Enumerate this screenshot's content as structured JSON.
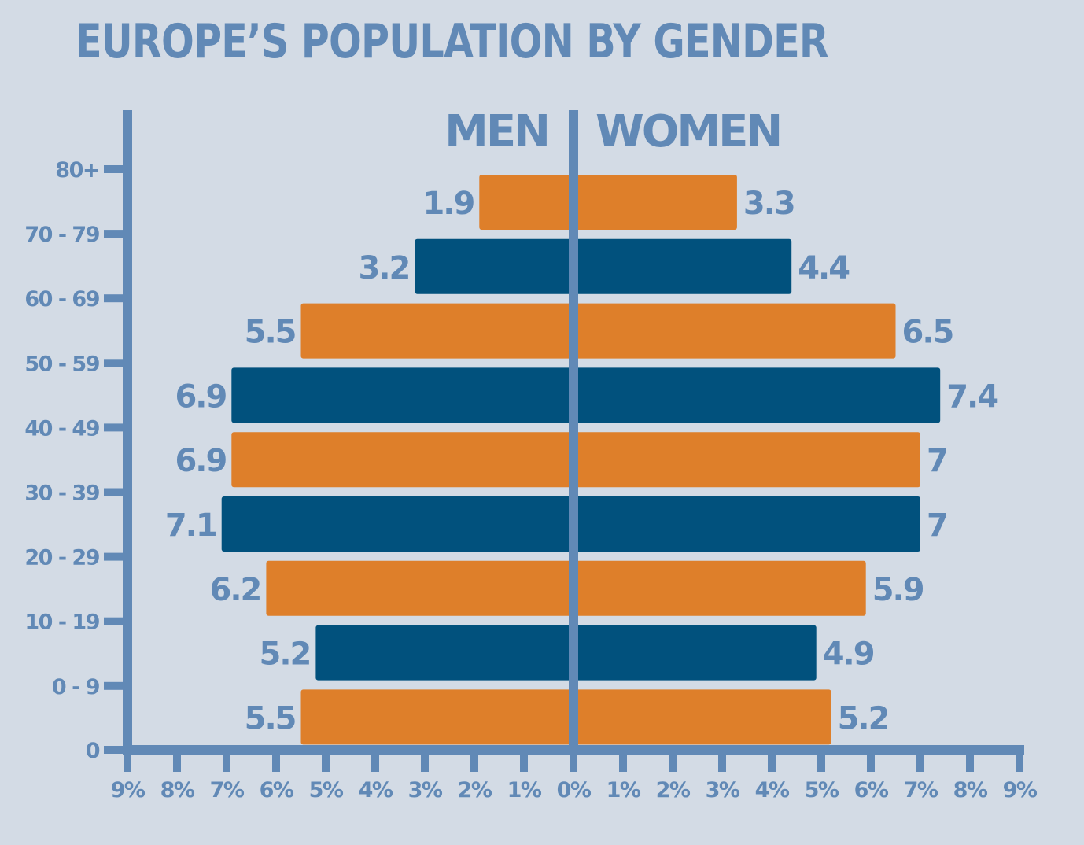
{
  "chart_data": {
    "type": "bar",
    "orientation": "horizontal-population-pyramid",
    "title": "EUROPE’S POPULATION BY GENDER",
    "y_tick_labels": [
      "80+",
      "70 - 79",
      "60 - 69",
      "50 - 59",
      "40 - 49",
      "30 - 39",
      "20 - 29",
      "10 - 19",
      "0 - 9",
      "0"
    ],
    "x_tick_labels": [
      "9%",
      "8%",
      "7%",
      "6%",
      "5%",
      "4%",
      "3%",
      "2%",
      "1%",
      "0%",
      "1%",
      "2%",
      "3%",
      "4%",
      "5%",
      "6%",
      "7%",
      "8%",
      "9%"
    ],
    "xlim": [
      -9,
      9
    ],
    "series": [
      {
        "name": "MEN",
        "values": [
          1.9,
          3.2,
          5.5,
          6.9,
          6.9,
          7.1,
          6.2,
          5.2,
          5.5
        ]
      },
      {
        "name": "WOMEN",
        "values": [
          3.3,
          4.4,
          6.5,
          7.4,
          7.0,
          7.0,
          5.9,
          4.9,
          5.2
        ]
      }
    ],
    "value_labels": {
      "men": [
        "1.9",
        "3.2",
        "5.5",
        "6.9",
        "6.9",
        "7.1",
        "6.2",
        "5.2",
        "5.5"
      ],
      "women": [
        "3.3",
        "4.4",
        "6.5",
        "7.4",
        "7",
        "7",
        "5.9",
        "4.9",
        "5.2"
      ]
    },
    "bar_colors": [
      "#de7f2a",
      "#01517d",
      "#de7f2a",
      "#01517d",
      "#de7f2a",
      "#01517d",
      "#de7f2a",
      "#01517d",
      "#de7f2a"
    ],
    "axis_color": "#6189b6",
    "label_color": "#6189b6",
    "background": "#d3dbe5",
    "grid": false,
    "legend": "none"
  }
}
